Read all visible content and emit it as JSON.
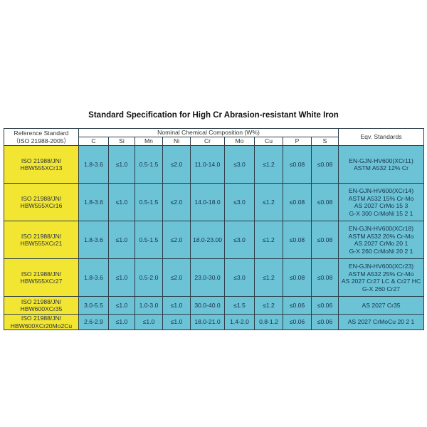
{
  "title": "Standard Specification for High Cr Abrasion-resistant White Iron",
  "header": {
    "ref_line1": "Reference Standard",
    "ref_line2": "（ISO 21988-2005）",
    "composition": "Nominal Chemical Composition (W%)",
    "eqv": "Eqv. Standards",
    "elements": [
      "C",
      "Si",
      "Mn",
      "Ni",
      "Cr",
      "Mo",
      "Cu",
      "P",
      "S"
    ]
  },
  "colors": {
    "reference": "#f3e633",
    "values": "#6cc3d6"
  },
  "rows": [
    {
      "ref": [
        "ISO 21988/JN/",
        "HBW555XCr13"
      ],
      "values": [
        "1.8-3.6",
        "≤1.0",
        "0.5-1.5",
        "≤2.0",
        "11.0-14.0",
        "≤3.0",
        "≤1.2",
        "≤0.08",
        "≤0.08"
      ],
      "eqv": [
        "EN-GJN-HV600(XCr11)",
        "ASTM A532 12% Cr"
      ]
    },
    {
      "ref": [
        "ISO 21988/JN/",
        "HBW555XCr16"
      ],
      "values": [
        "1.8-3.6",
        "≤1.0",
        "0.5-1.5",
        "≤2.0",
        "14.0-18.0",
        "≤3.0",
        "≤1.2",
        "≤0.08",
        "≤0.08"
      ],
      "eqv": [
        "EN-GJN-HV600(XCr14)",
        "ASTM A532 15% Cr-Mo",
        "AS 2027  CrMo 15 3",
        "G-X 300 CrMoNi 15 2 1"
      ]
    },
    {
      "ref": [
        "ISO 21988/JN/",
        "HBW555XCr21"
      ],
      "values": [
        "1.8-3.6",
        "≤1.0",
        "0.5-1.5",
        "≤2.0",
        "18.0-23.00",
        "≤3.0",
        "≤1.2",
        "≤0.08",
        "≤0.08"
      ],
      "eqv": [
        "EN-GJN-HV600(XCr18)",
        "ASTM A532 20% Cr-Mo",
        "AS 2027 CrMo 20 1",
        "G-X 260 CrMoNi 20 2 1"
      ]
    },
    {
      "ref": [
        "ISO 21988/JN/",
        "HBW555XCr27"
      ],
      "values": [
        "1.8-3.6",
        "≤1.0",
        "0.5-2.0",
        "≤2.0",
        "23.0-30.0",
        "≤3.0",
        "≤1.2",
        "≤0.08",
        "≤0.08"
      ],
      "eqv": [
        "EN-GJN-HV600(XCr23)",
        "ASTM A532 25% Cr-Mo",
        "AS 2027 Cr27 LC & Cr27 HC",
        "G-X 260 Cr27"
      ]
    },
    {
      "ref": [
        "ISO 21988/JN/",
        "HBW600XCr35"
      ],
      "values": [
        "3.0-5.5",
        "≤1.0",
        "1.0-3.0",
        "≤1.0",
        "30.0-40.0",
        "≤1.5",
        "≤1.2",
        "≤0.06",
        "≤0.06"
      ],
      "eqv": [
        "AS 2027 Cr35"
      ]
    },
    {
      "ref": [
        "ISO 21988/JN/",
        "HBW600XCr20Mo2Cu"
      ],
      "values": [
        "2.6-2.9",
        "≤1.0",
        "≤1.0",
        "≤1.0",
        "18.0-21.0",
        "1.4-2.0",
        "0.8-1.2",
        "≤0.06",
        "≤0.06"
      ],
      "eqv": [
        "AS 2027 CrMoCu 20 2 1"
      ]
    }
  ]
}
